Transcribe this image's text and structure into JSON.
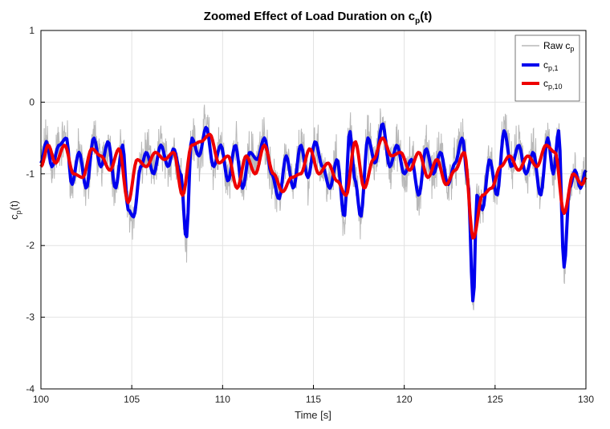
{
  "chart_data": {
    "type": "line",
    "title": {
      "main": "Zoomed Effect of Load Duration on c",
      "sub": "p",
      "tail": "(t)"
    },
    "xlabel": "Time [s]",
    "ylabel": {
      "main": "c",
      "sub": "p",
      "tail": "(t)"
    },
    "xlim": [
      100,
      130
    ],
    "ylim": [
      -4,
      1
    ],
    "xticks": [
      100,
      105,
      110,
      115,
      120,
      125,
      130
    ],
    "yticks": [
      -4,
      -3,
      -2,
      -1,
      0,
      1
    ],
    "grid": true,
    "legend_position": "top-right",
    "series": [
      {
        "key": "raw",
        "legend": {
          "main": "Raw c",
          "sub": "p"
        },
        "color": "#b8b8b8",
        "description": "raw noisy pressure coefficient (high-frequency noise around the 1 s average)"
      },
      {
        "key": "cp1",
        "legend": {
          "main": "c",
          "sub": "p,1"
        },
        "color": "#0000ee",
        "x": [
          100.0,
          100.3,
          100.6,
          101.0,
          101.4,
          101.7,
          102.1,
          102.5,
          102.9,
          103.3,
          103.7,
          104.1,
          104.5,
          104.8,
          105.1,
          105.5,
          105.8,
          106.2,
          106.6,
          107.0,
          107.3,
          107.7,
          108.0,
          108.3,
          108.7,
          109.1,
          109.5,
          109.9,
          110.3,
          110.7,
          111.1,
          111.5,
          111.9,
          112.3,
          112.7,
          113.1,
          113.5,
          113.9,
          114.3,
          114.7,
          115.1,
          115.5,
          115.9,
          116.3,
          116.7,
          117.0,
          117.3,
          117.6,
          118.0,
          118.4,
          118.8,
          119.2,
          119.6,
          120.0,
          120.4,
          120.8,
          121.2,
          121.6,
          122.0,
          122.4,
          122.8,
          123.2,
          123.5,
          123.8,
          124.0,
          124.3,
          124.7,
          125.1,
          125.5,
          125.9,
          126.3,
          126.7,
          127.1,
          127.5,
          127.9,
          128.2,
          128.5,
          128.8,
          129.1,
          129.4,
          129.7,
          130.0
        ],
        "y": [
          -0.85,
          -0.55,
          -0.9,
          -0.6,
          -0.5,
          -1.15,
          -0.7,
          -1.2,
          -0.5,
          -0.9,
          -0.55,
          -1.2,
          -0.6,
          -1.5,
          -1.6,
          -0.9,
          -0.7,
          -1.0,
          -0.6,
          -0.9,
          -0.65,
          -1.0,
          -1.9,
          -0.5,
          -0.75,
          -0.35,
          -0.9,
          -0.6,
          -1.1,
          -0.6,
          -1.2,
          -0.7,
          -0.8,
          -0.5,
          -1.0,
          -1.35,
          -0.75,
          -1.2,
          -0.6,
          -1.05,
          -0.55,
          -0.9,
          -1.2,
          -0.8,
          -1.6,
          -0.4,
          -1.1,
          -1.6,
          -0.5,
          -0.85,
          -0.3,
          -0.9,
          -0.6,
          -1.0,
          -0.8,
          -1.3,
          -0.65,
          -1.0,
          -0.7,
          -1.15,
          -0.85,
          -0.5,
          -1.1,
          -2.8,
          -1.3,
          -1.5,
          -0.8,
          -1.3,
          -0.4,
          -0.9,
          -0.6,
          -1.0,
          -0.7,
          -1.3,
          -0.5,
          -1.0,
          -0.4,
          -2.3,
          -1.2,
          -0.95,
          -1.2,
          -0.95
        ]
      },
      {
        "key": "cp10",
        "legend": {
          "main": "c",
          "sub": "p,10"
        },
        "color": "#ee0000",
        "x": [
          100.0,
          100.4,
          100.8,
          101.3,
          101.8,
          102.3,
          102.8,
          103.3,
          103.8,
          104.3,
          104.8,
          105.3,
          105.8,
          106.3,
          106.8,
          107.3,
          107.8,
          108.3,
          108.8,
          109.3,
          109.8,
          110.3,
          110.8,
          111.3,
          111.8,
          112.3,
          112.8,
          113.3,
          113.8,
          114.3,
          114.8,
          115.3,
          115.8,
          116.3,
          116.8,
          117.3,
          117.8,
          118.3,
          118.8,
          119.3,
          119.8,
          120.3,
          120.8,
          121.3,
          121.8,
          122.3,
          122.8,
          123.3,
          123.8,
          124.3,
          124.8,
          125.3,
          125.8,
          126.3,
          126.8,
          127.3,
          127.8,
          128.3,
          128.8,
          129.3,
          129.8,
          130.0
        ],
        "y": [
          -0.9,
          -0.6,
          -0.85,
          -0.6,
          -1.0,
          -1.05,
          -0.65,
          -0.75,
          -0.95,
          -0.65,
          -1.4,
          -0.8,
          -0.9,
          -0.7,
          -0.8,
          -0.7,
          -1.3,
          -0.6,
          -0.55,
          -0.45,
          -0.85,
          -0.75,
          -1.2,
          -0.75,
          -1.0,
          -0.6,
          -1.0,
          -1.25,
          -1.05,
          -1.0,
          -0.65,
          -1.0,
          -0.85,
          -1.1,
          -1.3,
          -0.55,
          -1.2,
          -0.8,
          -0.5,
          -0.75,
          -0.7,
          -0.95,
          -0.7,
          -1.05,
          -0.8,
          -1.15,
          -0.95,
          -0.7,
          -1.9,
          -1.3,
          -1.2,
          -0.9,
          -0.75,
          -0.95,
          -0.75,
          -0.9,
          -0.6,
          -0.7,
          -1.55,
          -1.0,
          -1.15,
          -1.05
        ]
      }
    ]
  }
}
